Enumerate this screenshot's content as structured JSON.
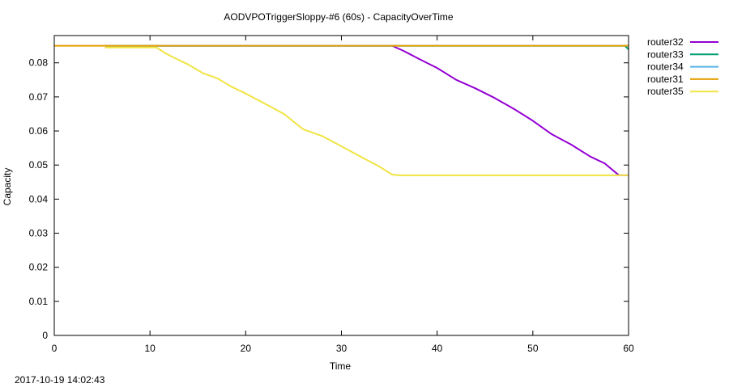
{
  "chart_data": {
    "type": "line",
    "title": "AODVPOTriggerSloppy-#6 (60s) - CapacityOverTime",
    "xlabel": "Time",
    "ylabel": "Capacity",
    "xlim": [
      0,
      60
    ],
    "ylim": [
      0,
      0.088
    ],
    "x_ticks": [
      0,
      10,
      20,
      30,
      40,
      50,
      60
    ],
    "x_tick_labels": [
      "0",
      "10",
      "20",
      "30",
      "40",
      "50",
      "60"
    ],
    "y_ticks": [
      0,
      0.01,
      0.02,
      0.03,
      0.04,
      0.05,
      0.06,
      0.07,
      0.08
    ],
    "y_tick_labels": [
      "0",
      "0.01",
      "0.02",
      "0.03",
      "0.04",
      "0.05",
      "0.06",
      "0.07",
      "0.08"
    ],
    "grid": false,
    "legend_position": "outside-top-right",
    "series": [
      {
        "name": "router32",
        "color": "#9400d3",
        "x": [
          5.3,
          35.3,
          36.5,
          38,
          40,
          42,
          44,
          46,
          48,
          50,
          52,
          54,
          56,
          57.5,
          59,
          60
        ],
        "y": [
          0.085,
          0.085,
          0.0835,
          0.0813,
          0.0785,
          0.075,
          0.0725,
          0.0697,
          0.0665,
          0.063,
          0.059,
          0.056,
          0.0525,
          0.0505,
          0.047,
          0.047
        ]
      },
      {
        "name": "router33",
        "color": "#009e73",
        "x": [
          5.3,
          59.6,
          60
        ],
        "y": [
          0.085,
          0.085,
          0.084
        ]
      },
      {
        "name": "router34",
        "color": "#56b4e9",
        "x": [
          5.3,
          60
        ],
        "y": [
          0.085,
          0.085
        ]
      },
      {
        "name": "router31",
        "color": "#e69f00",
        "x": [
          0,
          60
        ],
        "y": [
          0.085,
          0.085
        ]
      },
      {
        "name": "router35",
        "color": "#f0e442",
        "x": [
          5.3,
          10.7,
          11.5,
          12.5,
          14,
          15.5,
          17,
          18.5,
          20,
          22,
          24,
          26,
          28,
          30,
          32,
          34,
          35.3,
          36,
          60
        ],
        "y": [
          0.0845,
          0.0845,
          0.083,
          0.0815,
          0.0795,
          0.077,
          0.0755,
          0.073,
          0.071,
          0.068,
          0.065,
          0.0605,
          0.0585,
          0.0555,
          0.0525,
          0.0495,
          0.0472,
          0.047,
          0.047
        ]
      }
    ]
  },
  "footer": {
    "timestamp": "2017-10-19 14:02:43"
  }
}
